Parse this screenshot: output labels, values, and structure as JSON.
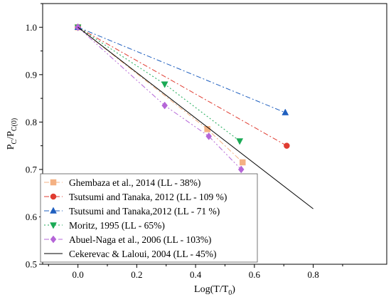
{
  "chart_data": {
    "type": "line",
    "xlabel": "Log(T/T0)",
    "xlabel_main": "Log(T/T",
    "xlabel_sub": "0",
    "xlabel_end": ")",
    "ylabel": "PC/PC(0)",
    "ylabel_p1": "P",
    "ylabel_sub1": "C",
    "ylabel_mid": "/P",
    "ylabel_sub2": "C(0)",
    "xlim": [
      -0.12,
      1.05
    ],
    "ylim": [
      0.5,
      1.05
    ],
    "xticks": [
      0.0,
      0.2,
      0.4,
      0.6,
      0.8
    ],
    "xtick_labels": [
      "0.0",
      "0.2",
      "0.4",
      "0.6",
      "0.8"
    ],
    "yticks": [
      0.5,
      0.6,
      0.7,
      0.8,
      0.9,
      1.0
    ],
    "ytick_labels": [
      "0.5",
      "0.6",
      "0.7",
      "0.8",
      "0.9",
      "1.0"
    ],
    "grid": false,
    "legend_position": "bottom-left",
    "series": [
      {
        "name": "Ghembaza et al., 2014 (LL - 38%)",
        "color": "#f4b183",
        "marker": "square",
        "dash": "dash-dot",
        "x": [
          0.0,
          0.44,
          0.56
        ],
        "y": [
          1.0,
          0.785,
          0.715
        ]
      },
      {
        "name": "Tsutsumi and Tanaka, 2012 (LL - 109 %)",
        "color": "#e03c31",
        "marker": "circle",
        "dash": "dash-dot",
        "x": [
          0.0,
          0.71
        ],
        "y": [
          1.0,
          0.75
        ]
      },
      {
        "name": "Tsutsumi and Tanaka,2012 (LL - 71 %)",
        "color": "#1f5fbf",
        "marker": "triangle-up",
        "dash": "dash-dot",
        "x": [
          0.0,
          0.705
        ],
        "y": [
          1.0,
          0.82
        ]
      },
      {
        "name": "Moritz, 1995 (LL - 65%)",
        "color": "#1aaa55",
        "marker": "triangle-down",
        "dash": "dot",
        "x": [
          0.0,
          0.295,
          0.55
        ],
        "y": [
          1.0,
          0.88,
          0.76
        ]
      },
      {
        "name": "Abuel-Naga et al., 2006 (LL - 103%)",
        "color": "#b565d8",
        "marker": "diamond",
        "dash": "dash-dot-dot",
        "x": [
          0.0,
          0.295,
          0.445,
          0.555
        ],
        "y": [
          1.0,
          0.835,
          0.77,
          0.7
        ]
      },
      {
        "name": "Cekerevac & Laloui, 2004 (LL - 45%)",
        "color": "#000000",
        "marker": "none",
        "dash": "solid",
        "x": [
          0.0,
          0.8
        ],
        "y": [
          1.0,
          0.617
        ]
      }
    ]
  }
}
